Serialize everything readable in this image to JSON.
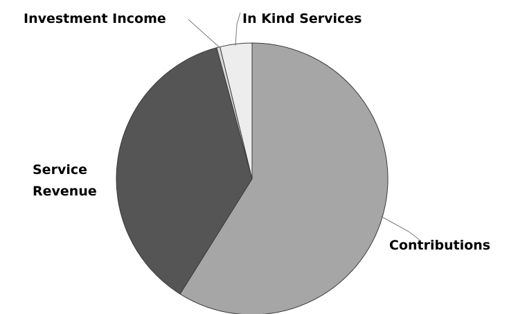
{
  "chart_data": {
    "type": "pie",
    "title": "",
    "start_angle_deg": 0,
    "direction": "clockwise",
    "slices": [
      {
        "label": "Contributions",
        "label_lines": [
          "Contributions"
        ],
        "value": 58.9,
        "color": "#a6a6a6"
      },
      {
        "label": "Service Revenue",
        "label_lines": [
          "Service",
          "Revenue"
        ],
        "value": 36.9,
        "color": "#555555"
      },
      {
        "label": "Investment Income",
        "label_lines": [
          "Investment Income"
        ],
        "value": 0.4,
        "color": "#d9d9d9"
      },
      {
        "label": "In Kind Services",
        "label_lines": [
          "In Kind Services"
        ],
        "value": 3.8,
        "color": "#ededed"
      }
    ],
    "legend": "none"
  }
}
